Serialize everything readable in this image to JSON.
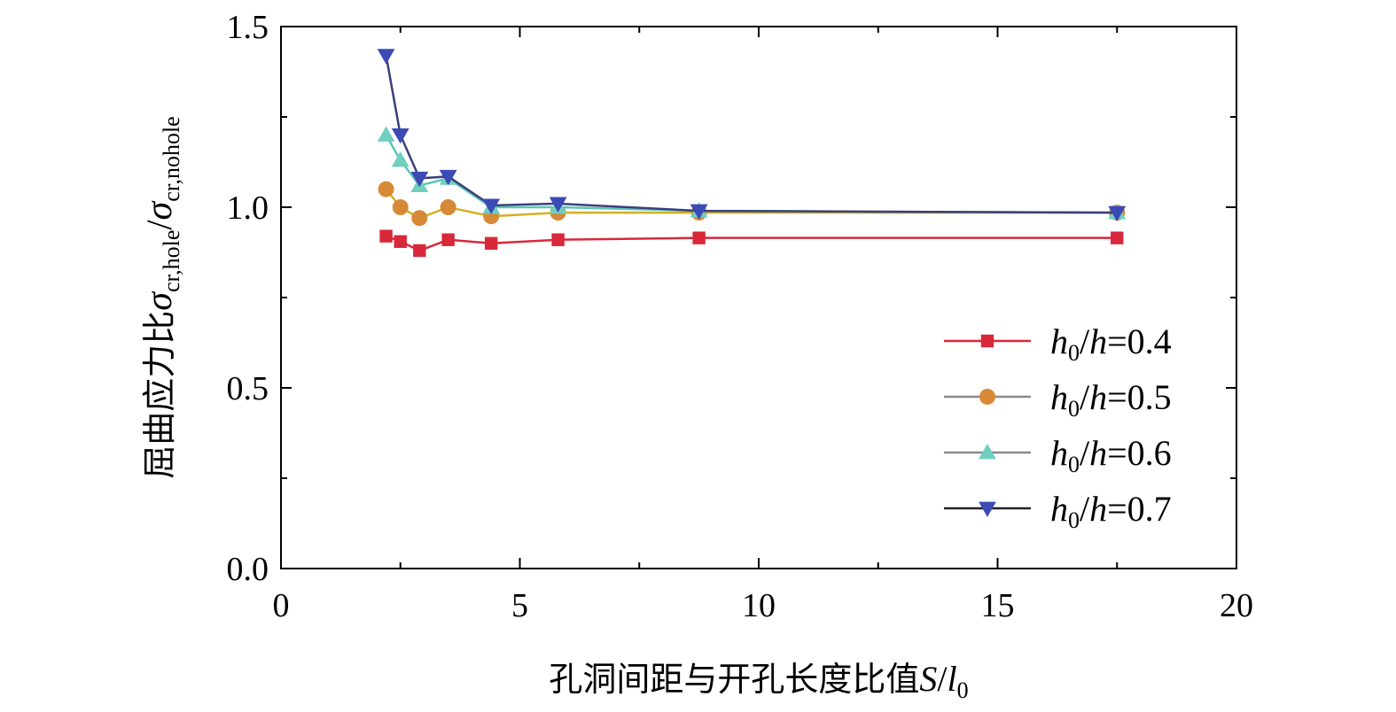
{
  "chart_data": {
    "type": "line",
    "title": "",
    "xlabel_text": "孔洞间距与开孔长度比值",
    "xlabel_var": "S",
    "xlabel_sep": "/",
    "xlabel_var2": "l",
    "xlabel_sub": "0",
    "ylabel_text": "屈曲应力比",
    "ylabel_sigma1": "σ",
    "ylabel_sub1": "cr,hole",
    "ylabel_sep": "/",
    "ylabel_sigma2": "σ",
    "ylabel_sub2": "cr,nohole",
    "xlim": [
      0,
      20
    ],
    "ylim": [
      0,
      1.5
    ],
    "xticks": [
      0,
      5,
      10,
      15,
      20
    ],
    "xtick_labels": [
      "0",
      "5",
      "10",
      "15",
      "20"
    ],
    "yticks": [
      0.0,
      0.5,
      1.0,
      1.5
    ],
    "ytick_labels": [
      "0.0",
      "0.5",
      "1.0",
      "1.5"
    ],
    "grid": false,
    "legend_position": "right",
    "series": [
      {
        "name": "h0/h=0.4",
        "legend_var": "h",
        "legend_sub": "0",
        "legend_rest": "/",
        "legend_var2": "h",
        "legend_value": "=0.4",
        "color": "#d8283a",
        "marker": "square",
        "x": [
          2.2,
          2.5,
          2.9,
          3.5,
          4.4,
          5.8,
          8.75,
          17.5
        ],
        "y": [
          0.92,
          0.905,
          0.88,
          0.91,
          0.9,
          0.91,
          0.915,
          0.915
        ]
      },
      {
        "name": "h0/h=0.5",
        "legend_var": "h",
        "legend_sub": "0",
        "legend_rest": "/",
        "legend_var2": "h",
        "legend_value": "=0.5",
        "color": "#d4b021",
        "marker_color": "#d68a38",
        "marker": "circle",
        "x": [
          2.2,
          2.5,
          2.9,
          3.5,
          4.4,
          5.8,
          8.75,
          17.5
        ],
        "y": [
          1.05,
          1.0,
          0.97,
          1.0,
          0.975,
          0.985,
          0.985,
          0.985
        ]
      },
      {
        "name": "h0/h=0.6",
        "legend_var": "h",
        "legend_sub": "0",
        "legend_rest": "/",
        "legend_var2": "h",
        "legend_value": "=0.6",
        "color": "#5cc6b5",
        "marker_color": "#6fd0bf",
        "marker": "triangle-up",
        "x": [
          2.2,
          2.5,
          2.9,
          3.5,
          4.4,
          5.8,
          8.75,
          17.5
        ],
        "y": [
          1.2,
          1.13,
          1.06,
          1.08,
          1.0,
          1.0,
          0.99,
          0.985
        ]
      },
      {
        "name": "h0/h=0.7",
        "legend_var": "h",
        "legend_sub": "0",
        "legend_rest": "/",
        "legend_var2": "h",
        "legend_value": "=0.7",
        "color": "#3a3f7a",
        "marker_color": "#3c4ab5",
        "marker": "triangle-down",
        "x": [
          2.2,
          2.5,
          2.9,
          3.5,
          4.4,
          5.8,
          8.75,
          17.5
        ],
        "y": [
          1.42,
          1.2,
          1.08,
          1.085,
          1.005,
          1.01,
          0.99,
          0.985
        ]
      }
    ]
  }
}
